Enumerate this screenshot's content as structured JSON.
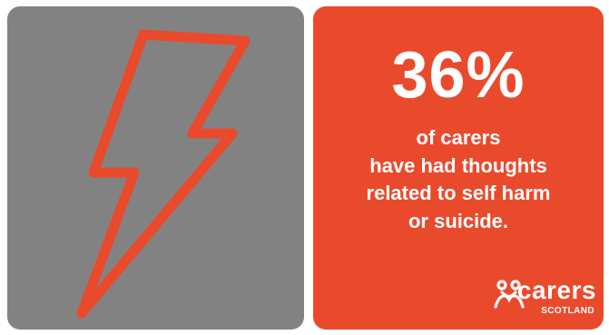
{
  "colors": {
    "left_panel_bg": "#828282",
    "right_panel_bg": "#ea4a2c",
    "bolt_stroke": "#ea4a2c",
    "text": "#ffffff"
  },
  "icon": "lightning-bolt-icon",
  "stat": {
    "value": "36%",
    "lines": [
      "of carers",
      "have had thoughts",
      "related to self harm",
      "or suicide."
    ]
  },
  "logo": {
    "wordmark": "carers",
    "subtext": "SCOTLAND",
    "icon": "people-figures-icon"
  }
}
